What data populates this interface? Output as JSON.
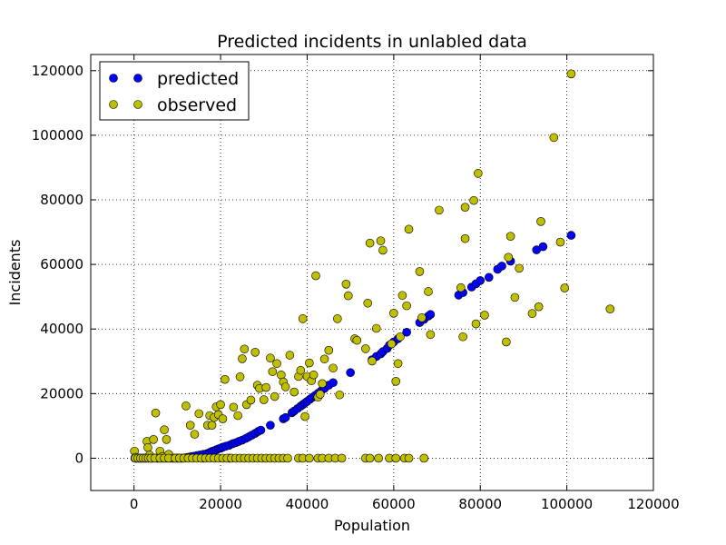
{
  "chart_data": {
    "type": "scatter",
    "title": "Predicted incidents in unlabled data",
    "xlabel": "Population",
    "ylabel": "Incidents",
    "xlim": [
      -10000,
      120000
    ],
    "ylim": [
      -10000,
      125000
    ],
    "xticks": [
      0,
      20000,
      40000,
      60000,
      80000,
      100000,
      120000
    ],
    "yticks": [
      0,
      20000,
      40000,
      60000,
      80000,
      100000,
      120000
    ],
    "grid": true,
    "legend_position": "top-left",
    "series": [
      {
        "name": "predicted",
        "color": "#0000ff",
        "points": [
          [
            200,
            0
          ],
          [
            500,
            0
          ],
          [
            900,
            0
          ],
          [
            1300,
            0
          ],
          [
            1800,
            0
          ],
          [
            2300,
            0
          ],
          [
            2800,
            0
          ],
          [
            3300,
            0
          ],
          [
            3800,
            0
          ],
          [
            4300,
            0
          ],
          [
            4800,
            0
          ],
          [
            5300,
            0
          ],
          [
            5800,
            0
          ],
          [
            6300,
            0
          ],
          [
            6800,
            0
          ],
          [
            7300,
            0
          ],
          [
            7800,
            0
          ],
          [
            8300,
            0
          ],
          [
            8800,
            0
          ],
          [
            9300,
            0
          ],
          [
            9800,
            0
          ],
          [
            10300,
            0
          ],
          [
            10800,
            0
          ],
          [
            11300,
            0
          ],
          [
            11800,
            100
          ],
          [
            12300,
            200
          ],
          [
            12800,
            350
          ],
          [
            13300,
            500
          ],
          [
            13800,
            600
          ],
          [
            14500,
            800
          ],
          [
            15200,
            1000
          ],
          [
            16000,
            1200
          ],
          [
            16800,
            1400
          ],
          [
            17500,
            1800
          ],
          [
            18000,
            2100
          ],
          [
            18500,
            2300
          ],
          [
            19000,
            2600
          ],
          [
            19500,
            2900
          ],
          [
            20000,
            3100
          ],
          [
            20500,
            3400
          ],
          [
            21200,
            3700
          ],
          [
            22000,
            4000
          ],
          [
            22800,
            4500
          ],
          [
            23500,
            4800
          ],
          [
            24200,
            5200
          ],
          [
            25000,
            5600
          ],
          [
            25800,
            6100
          ],
          [
            26500,
            6600
          ],
          [
            27200,
            7100
          ],
          [
            28000,
            7700
          ],
          [
            28700,
            8300
          ],
          [
            29300,
            8700
          ],
          [
            31500,
            10200
          ],
          [
            34500,
            12200
          ],
          [
            35000,
            12600
          ],
          [
            36500,
            14100
          ],
          [
            37000,
            14600
          ],
          [
            37800,
            15400
          ],
          [
            38500,
            16100
          ],
          [
            39000,
            16600
          ],
          [
            39500,
            17100
          ],
          [
            40000,
            17600
          ],
          [
            40600,
            18200
          ],
          [
            41200,
            18800
          ],
          [
            41800,
            19400
          ],
          [
            42500,
            20100
          ],
          [
            43200,
            20800
          ],
          [
            44000,
            21600
          ],
          [
            45000,
            22600
          ],
          [
            46000,
            23400
          ],
          [
            50000,
            26500
          ],
          [
            55000,
            30500
          ],
          [
            56000,
            31500
          ],
          [
            57000,
            32300
          ],
          [
            57500,
            33000
          ],
          [
            58500,
            34000
          ],
          [
            59000,
            35000
          ],
          [
            60000,
            36000
          ],
          [
            61000,
            37000
          ],
          [
            63000,
            39000
          ],
          [
            66000,
            42000
          ],
          [
            67000,
            43000
          ],
          [
            68000,
            44000
          ],
          [
            68500,
            44500
          ],
          [
            75000,
            50500
          ],
          [
            76000,
            51300
          ],
          [
            78000,
            53000
          ],
          [
            79000,
            54000
          ],
          [
            80000,
            55000
          ],
          [
            82000,
            56000
          ],
          [
            84000,
            58500
          ],
          [
            85000,
            59500
          ],
          [
            87000,
            61000
          ],
          [
            93000,
            64500
          ],
          [
            94500,
            65500
          ],
          [
            101000,
            69000
          ]
        ]
      },
      {
        "name": "observed",
        "color": "#bfbf00",
        "points": [
          [
            100,
            2200
          ],
          [
            300,
            300
          ],
          [
            600,
            0
          ],
          [
            1200,
            0
          ],
          [
            1800,
            0
          ],
          [
            2500,
            0
          ],
          [
            3000,
            5200
          ],
          [
            3200,
            3300
          ],
          [
            3600,
            1000
          ],
          [
            4000,
            0
          ],
          [
            4500,
            5800
          ],
          [
            5000,
            14000
          ],
          [
            5500,
            0
          ],
          [
            6000,
            2200
          ],
          [
            6500,
            500
          ],
          [
            7000,
            8800
          ],
          [
            7500,
            5800
          ],
          [
            8000,
            1200
          ],
          [
            9000,
            0
          ],
          [
            10000,
            0
          ],
          [
            11000,
            0
          ],
          [
            12000,
            16200
          ],
          [
            13000,
            10200
          ],
          [
            14000,
            7400
          ],
          [
            15000,
            13800
          ],
          [
            16000,
            0
          ],
          [
            17000,
            10200
          ],
          [
            17500,
            13200
          ],
          [
            18000,
            10200
          ],
          [
            18500,
            12600
          ],
          [
            19000,
            15900
          ],
          [
            19500,
            13500
          ],
          [
            20000,
            16600
          ],
          [
            20500,
            12200
          ],
          [
            21000,
            24400
          ],
          [
            22000,
            0
          ],
          [
            23000,
            15800
          ],
          [
            24000,
            13200
          ],
          [
            24500,
            25200
          ],
          [
            25000,
            30800
          ],
          [
            25500,
            33800
          ],
          [
            26000,
            16600
          ],
          [
            27000,
            18000
          ],
          [
            28000,
            32800
          ],
          [
            28500,
            22600
          ],
          [
            29000,
            21600
          ],
          [
            30000,
            18100
          ],
          [
            30500,
            21900
          ],
          [
            31500,
            31000
          ],
          [
            32000,
            26800
          ],
          [
            32500,
            19100
          ],
          [
            33000,
            29300
          ],
          [
            34000,
            25800
          ],
          [
            34500,
            23600
          ],
          [
            35000,
            22100
          ],
          [
            36000,
            31900
          ],
          [
            37000,
            20500
          ],
          [
            38000,
            25300
          ],
          [
            38500,
            27200
          ],
          [
            39000,
            43200
          ],
          [
            39500,
            12900
          ],
          [
            40000,
            25300
          ],
          [
            40500,
            29500
          ],
          [
            41000,
            24000
          ],
          [
            41500,
            25800
          ],
          [
            42000,
            56500
          ],
          [
            42500,
            18900
          ],
          [
            43000,
            19800
          ],
          [
            43500,
            23100
          ],
          [
            44000,
            30700
          ],
          [
            45000,
            33400
          ],
          [
            46000,
            27900
          ],
          [
            47000,
            43200
          ],
          [
            47500,
            19600
          ],
          [
            49000,
            53900
          ],
          [
            49500,
            50300
          ],
          [
            51000,
            37000
          ],
          [
            51500,
            36500
          ],
          [
            53500,
            33900
          ],
          [
            54000,
            48000
          ],
          [
            54500,
            66600
          ],
          [
            55000,
            30100
          ],
          [
            56000,
            40200
          ],
          [
            57000,
            67300
          ],
          [
            57500,
            64400
          ],
          [
            59500,
            35400
          ],
          [
            60000,
            44900
          ],
          [
            60500,
            23800
          ],
          [
            61000,
            29300
          ],
          [
            61500,
            37600
          ],
          [
            62000,
            50400
          ],
          [
            63000,
            47200
          ],
          [
            63500,
            70900
          ],
          [
            66000,
            57800
          ],
          [
            66500,
            43500
          ],
          [
            68000,
            51600
          ],
          [
            68500,
            38300
          ],
          [
            70500,
            76800
          ],
          [
            75500,
            52800
          ],
          [
            76000,
            37600
          ],
          [
            76500,
            68000
          ],
          [
            76500,
            77700
          ],
          [
            78500,
            79800
          ],
          [
            79000,
            41600
          ],
          [
            79500,
            88200
          ],
          [
            81000,
            44300
          ],
          [
            86000,
            36000
          ],
          [
            86500,
            62200
          ],
          [
            87000,
            68700
          ],
          [
            88000,
            49800
          ],
          [
            89000,
            58800
          ],
          [
            92000,
            44800
          ],
          [
            93500,
            46900
          ],
          [
            94000,
            73300
          ],
          [
            97000,
            99300
          ],
          [
            98500,
            66900
          ],
          [
            99500,
            52700
          ],
          [
            101000,
            119000
          ],
          [
            110000,
            46200
          ],
          [
            300,
            0
          ],
          [
            900,
            0
          ],
          [
            1500,
            0
          ],
          [
            2100,
            0
          ],
          [
            2700,
            0
          ],
          [
            3300,
            0
          ],
          [
            3900,
            0
          ],
          [
            4800,
            0
          ],
          [
            6000,
            0
          ],
          [
            7000,
            0
          ],
          [
            8000,
            0
          ],
          [
            9500,
            0
          ],
          [
            10500,
            0
          ],
          [
            11500,
            0
          ],
          [
            12500,
            0
          ],
          [
            13500,
            0
          ],
          [
            14500,
            0
          ],
          [
            15500,
            0
          ],
          [
            16500,
            0
          ],
          [
            17500,
            0
          ],
          [
            18500,
            0
          ],
          [
            19500,
            0
          ],
          [
            20500,
            0
          ],
          [
            21500,
            0
          ],
          [
            22500,
            0
          ],
          [
            23500,
            0
          ],
          [
            24500,
            0
          ],
          [
            25500,
            0
          ],
          [
            26500,
            0
          ],
          [
            27500,
            0
          ],
          [
            28500,
            0
          ],
          [
            29500,
            0
          ],
          [
            30500,
            0
          ],
          [
            31500,
            0
          ],
          [
            32500,
            0
          ],
          [
            33500,
            0
          ],
          [
            34500,
            0
          ],
          [
            35500,
            0
          ],
          [
            38000,
            0
          ],
          [
            39000,
            0
          ],
          [
            40500,
            0
          ],
          [
            42500,
            0
          ],
          [
            43500,
            0
          ],
          [
            45000,
            0
          ],
          [
            46500,
            0
          ],
          [
            48000,
            0
          ],
          [
            53500,
            0
          ],
          [
            54500,
            0
          ],
          [
            56500,
            0
          ],
          [
            59000,
            0
          ],
          [
            60500,
            0
          ],
          [
            62500,
            0
          ],
          [
            63500,
            0
          ],
          [
            67000,
            0
          ]
        ]
      }
    ]
  }
}
